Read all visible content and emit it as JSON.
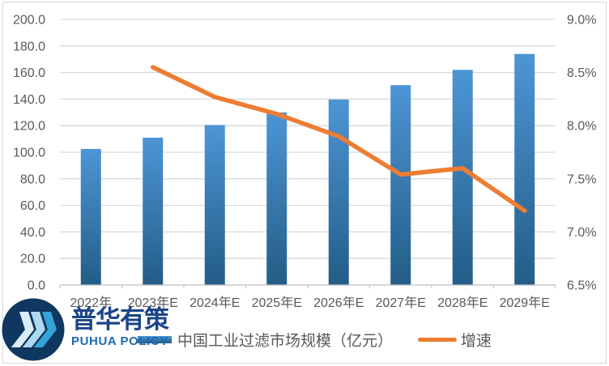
{
  "chart_data": {
    "type": "combo",
    "title": "",
    "categories": [
      "2022年",
      "2023年E",
      "2024年E",
      "2025年E",
      "2026年E",
      "2027年E",
      "2028年E",
      "2029年E"
    ],
    "series": [
      {
        "name": "中国工业过滤市场规模（亿元）",
        "type": "bar",
        "axis": "left",
        "values": [
          102.5,
          111.0,
          120.5,
          130.0,
          139.7,
          150.5,
          162.0,
          174.0
        ],
        "color_top": "#4D95D5",
        "color_bottom": "#235D87"
      },
      {
        "name": "增速",
        "type": "line",
        "axis": "right",
        "unit": "%",
        "values": [
          null,
          8.55,
          8.27,
          8.11,
          7.9,
          7.54,
          7.6,
          7.2
        ],
        "color": "#ED7D31"
      }
    ],
    "left_axis": {
      "min": 0,
      "max": 200,
      "step": 20,
      "tick_labels": [
        "0.0",
        "20.0",
        "40.0",
        "60.0",
        "80.0",
        "100.0",
        "120.0",
        "140.0",
        "160.0",
        "180.0",
        "200.0"
      ]
    },
    "right_axis": {
      "min": 6.5,
      "max": 9.0,
      "step": 0.5,
      "tick_labels": [
        "6.5%",
        "7.0%",
        "7.5%",
        "8.0%",
        "8.5%",
        "9.0%"
      ]
    },
    "grid": true,
    "legend_position": "bottom"
  },
  "legend": {
    "market_size_label": "中国工业过滤市场规模（亿元）",
    "growth_label": "增速"
  },
  "logo": {
    "chinese": "普华有策",
    "english": "PUHUA POLICY"
  },
  "colors": {
    "bar_gradient_top": "#4D95D5",
    "bar_gradient_bottom": "#235D87",
    "growth_line": "#ED7D31",
    "gridline": "#D9D9D9",
    "axis_line": "#BFBFBF",
    "tick_label": "#595959",
    "legend_text": "#595959",
    "logo_circle": "#10375F",
    "logo_chevron_1": "#D9ECF7",
    "logo_chevron_2": "#AFD9F0",
    "logo_chevron_3": "#35A3D9",
    "logo_cn_text": "#1C4587",
    "logo_en_text": "#1A6BB0"
  }
}
